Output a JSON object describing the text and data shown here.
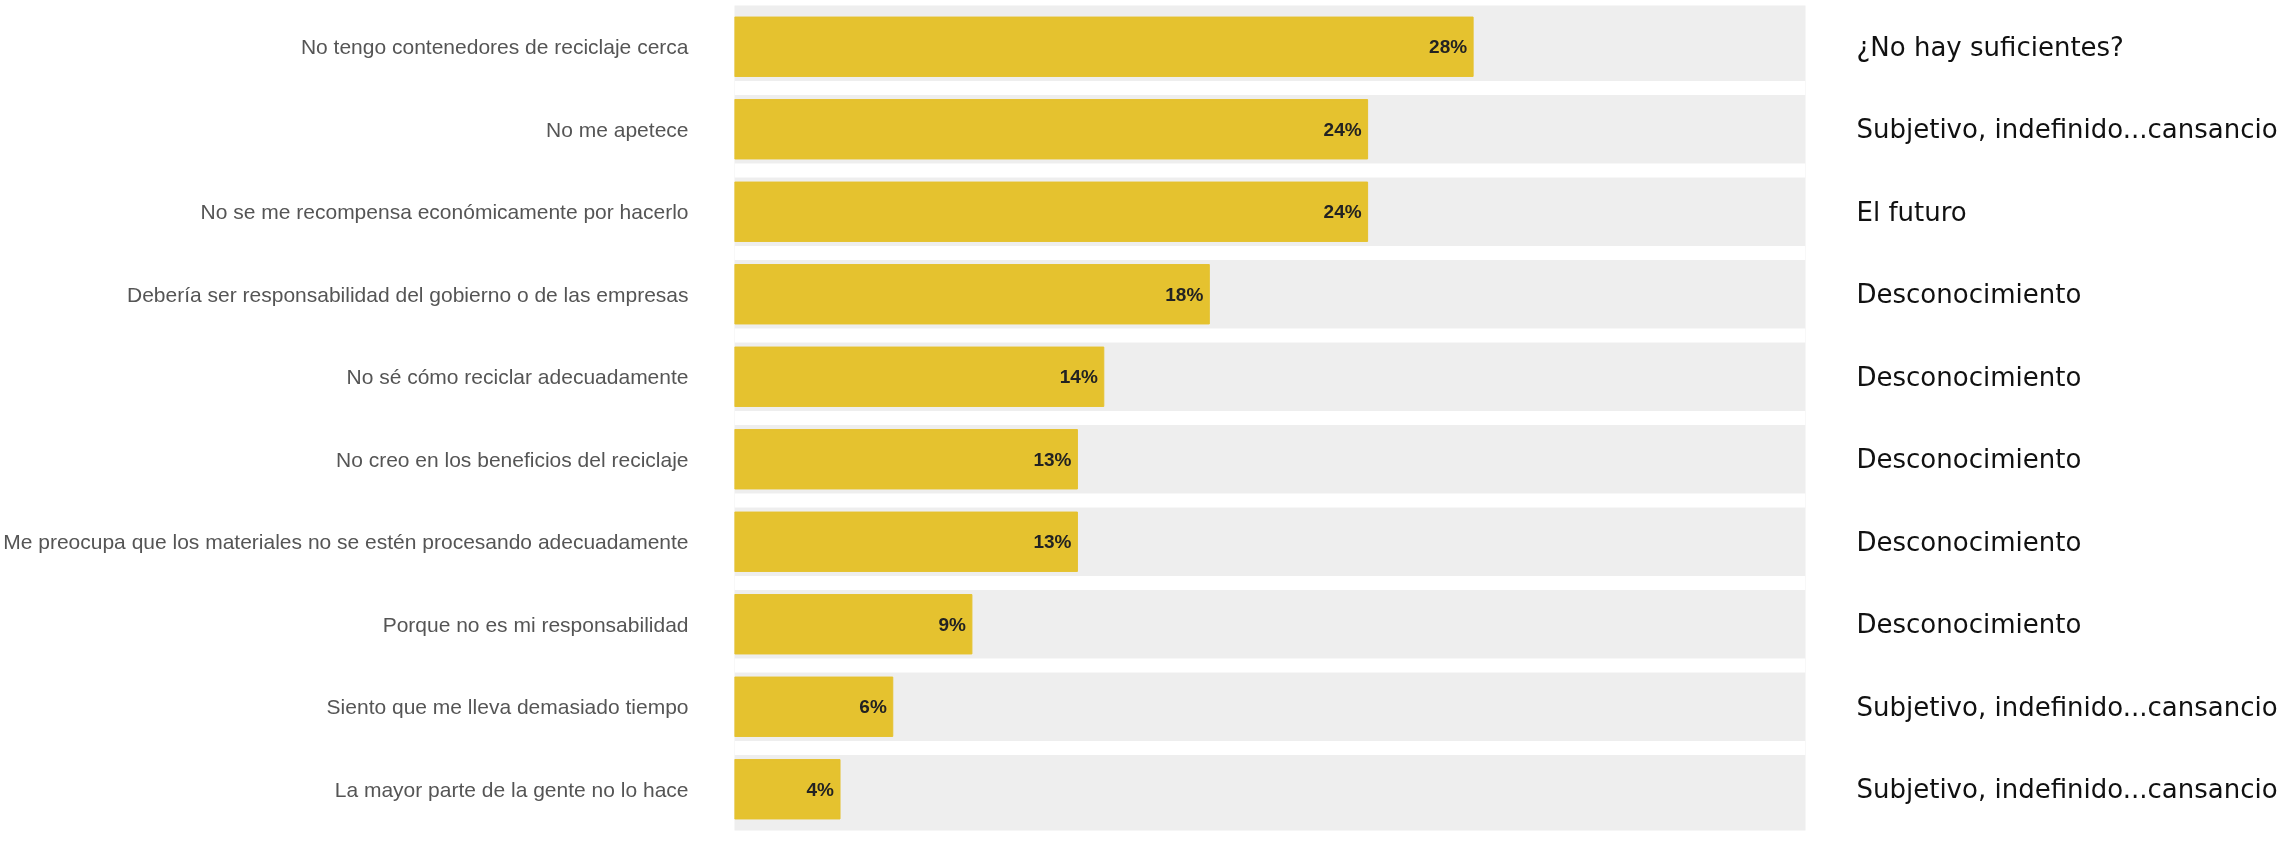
{
  "chart_data": {
    "type": "bar",
    "orientation": "horizontal",
    "categories": [
      "No tengo contenedores de reciclaje cerca",
      "No me apetece",
      "No se me recompensa económicamente por hacerlo",
      "Debería ser responsabilidad del gobierno o de las empresas",
      "No sé cómo reciclar adecuadamente",
      "No creo en los beneficios del reciclaje",
      "Me preocupa que los materiales no se estén procesando adecuadamente",
      "Porque no es mi responsabilidad",
      "Siento que me lleva demasiado tiempo",
      "La mayor parte de la gente no lo hace"
    ],
    "values": [
      28,
      24,
      24,
      18,
      14,
      13,
      13,
      9,
      6,
      4
    ],
    "value_labels": [
      "28%",
      "24%",
      "24%",
      "18%",
      "14%",
      "13%",
      "13%",
      "9%",
      "6%",
      "4%"
    ],
    "color": "#e5c22f",
    "xlim": [
      0,
      40.6
    ],
    "tick_labels": "y",
    "grid": false,
    "annotations": [
      "¿No hay suficientes?",
      "Subjetivo, indefinido...cansancio",
      "El futuro",
      "Desconocimiento",
      "Desconocimiento",
      "Desconocimiento",
      "Desconocimiento",
      "Desconocimiento",
      "Subjetivo, indefinido...cansancio",
      "Subjetivo, indefinido...cansancio"
    ]
  }
}
